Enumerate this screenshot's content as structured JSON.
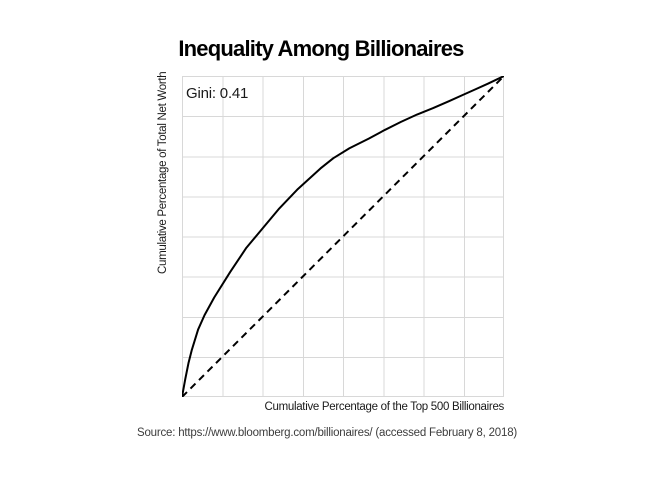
{
  "title": "Inequality Among Billionaires",
  "annotation": {
    "gini_label": "Gini: 0.41"
  },
  "axes": {
    "x_label": "Cumulative Percentage of the Top 500 Billionaires",
    "y_label": "Cumulative Percentage of Total Net Worth"
  },
  "source_note": "Source: https://www.bloomberg.com/billionaires/ (accessed February 8, 2018)",
  "colors": {
    "background": "#ffffff",
    "grid": "#d8d8d8",
    "panel_border": "#d8d8d8",
    "curve": "#000000",
    "equality_line": "#000000",
    "title_text": "#000000",
    "axis_text": "#1a1a1a",
    "source_text": "#3d3d3d"
  },
  "chart_data": {
    "type": "line",
    "title": "Inequality Among Billionaires",
    "xlabel": "Cumulative Percentage of the Top 500 Billionaires",
    "ylabel": "Cumulative Percentage of Total Net Worth",
    "xlim": [
      0,
      100
    ],
    "ylim": [
      0,
      100
    ],
    "grid": "on",
    "grid_interval_pct": 12.5,
    "tick_labels": "none",
    "annotations": [
      {
        "text": "Gini: 0.41",
        "x": 1.5,
        "y": 95
      }
    ],
    "series": [
      {
        "name": "Lorenz curve of billionaire net worth",
        "style": "solid",
        "x": [
          0,
          1,
          2,
          3,
          5,
          7,
          10,
          15,
          20,
          25,
          30,
          36,
          43,
          47,
          52,
          58,
          63,
          68,
          73,
          78,
          83,
          87,
          91,
          95,
          100
        ],
        "y": [
          0,
          5.5,
          10.5,
          14.5,
          21,
          25.5,
          31,
          39,
          46.5,
          52.5,
          58.5,
          64.8,
          71.2,
          74.4,
          77.5,
          80.5,
          83.2,
          85.7,
          88,
          90,
          92.2,
          94,
          95.8,
          97.6,
          100
        ]
      },
      {
        "name": "Line of equality",
        "style": "dashed",
        "x": [
          0,
          100
        ],
        "y": [
          0,
          100
        ]
      }
    ]
  }
}
